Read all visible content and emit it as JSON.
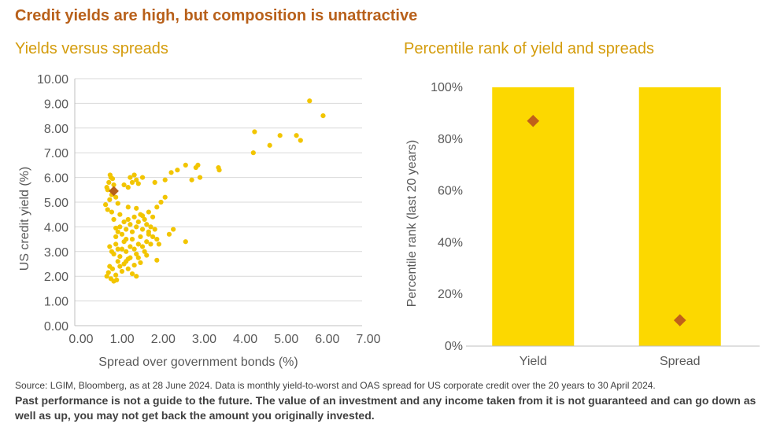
{
  "header": {
    "title": "Credit yields are high, but composition is unattractive",
    "left_subtitle": "Yields versus spreads",
    "right_subtitle": "Percentile rank of yield and spreads"
  },
  "footer": {
    "source": "Source: LGIM, Bloomberg, as at 28 June 2024. Data is monthly yield-to-worst and OAS spread for US corporate credit over the 20 years to 30 April 2024.",
    "disclaimer": "Past performance is not a guide to the future. The value of an investment and any income taken from it is not guaranteed and can go down as well as up, you may not get back the amount you originally invested."
  },
  "colors": {
    "point": "#f2c500",
    "current_point": "#b8601a",
    "bar": "#fcd800",
    "marker": "#c0601a",
    "title": "#b8601a",
    "subtitle": "#d49c0c"
  },
  "chart_data": [
    {
      "type": "scatter",
      "xlabel": "Spread over government bonds (%)",
      "ylabel": "US credit yield (%)",
      "xlim": [
        0,
        7
      ],
      "ylim": [
        0,
        10
      ],
      "x_ticks": [
        "0.00",
        "1.00",
        "2.00",
        "3.00",
        "4.00",
        "5.00",
        "6.00",
        "7.00"
      ],
      "y_ticks": [
        "0.00",
        "1.00",
        "2.00",
        "3.00",
        "4.00",
        "5.00",
        "6.00",
        "7.00",
        "8.00",
        "9.00",
        "10.00"
      ],
      "grid": "horizontal",
      "series": [
        {
          "points": [
            [
              0.78,
              2.0
            ],
            [
              0.82,
              2.15
            ],
            [
              0.88,
              1.9
            ],
            [
              0.92,
              2.3
            ],
            [
              0.95,
              1.8
            ],
            [
              1.02,
              1.85
            ],
            [
              0.85,
              2.4
            ],
            [
              1.0,
              2.05
            ],
            [
              0.75,
              4.9
            ],
            [
              0.8,
              4.7
            ],
            [
              0.85,
              5.1
            ],
            [
              0.9,
              5.3
            ],
            [
              0.78,
              5.6
            ],
            [
              0.83,
              5.8
            ],
            [
              0.88,
              6.0
            ],
            [
              0.92,
              5.95
            ],
            [
              0.86,
              6.1
            ],
            [
              0.95,
              5.7
            ],
            [
              0.8,
              5.5
            ],
            [
              1.0,
              5.2
            ],
            [
              1.05,
              4.95
            ],
            [
              0.9,
              4.6
            ],
            [
              0.85,
              3.2
            ],
            [
              0.9,
              3.0
            ],
            [
              0.95,
              2.9
            ],
            [
              1.0,
              3.3
            ],
            [
              1.1,
              2.8
            ],
            [
              1.15,
              3.1
            ],
            [
              1.2,
              3.4
            ],
            [
              1.25,
              3.0
            ],
            [
              1.3,
              2.7
            ],
            [
              1.35,
              3.2
            ],
            [
              1.4,
              3.5
            ],
            [
              1.45,
              3.1
            ],
            [
              1.5,
              2.9
            ],
            [
              1.55,
              3.3
            ],
            [
              1.6,
              3.6
            ],
            [
              1.65,
              3.2
            ],
            [
              1.7,
              3.0
            ],
            [
              1.75,
              3.4
            ],
            [
              1.8,
              3.7
            ],
            [
              1.85,
              3.3
            ],
            [
              1.0,
              3.6
            ],
            [
              1.05,
              3.8
            ],
            [
              1.1,
              4.0
            ],
            [
              1.15,
              3.7
            ],
            [
              1.2,
              4.2
            ],
            [
              1.25,
              3.9
            ],
            [
              1.3,
              4.3
            ],
            [
              1.35,
              4.1
            ],
            [
              1.4,
              3.8
            ],
            [
              1.45,
              4.4
            ],
            [
              1.5,
              4.0
            ],
            [
              1.55,
              4.2
            ],
            [
              1.6,
              4.5
            ],
            [
              1.65,
              3.9
            ],
            [
              1.7,
              4.3
            ],
            [
              1.75,
              4.1
            ],
            [
              1.8,
              3.8
            ],
            [
              1.85,
              4.0
            ],
            [
              1.9,
              3.6
            ],
            [
              1.95,
              3.9
            ],
            [
              2.0,
              3.5
            ],
            [
              2.05,
              3.3
            ],
            [
              1.05,
              2.6
            ],
            [
              1.1,
              2.4
            ],
            [
              1.2,
              2.5
            ],
            [
              1.3,
              2.3
            ],
            [
              1.4,
              2.1
            ],
            [
              1.5,
              2.0
            ],
            [
              1.25,
              2.6
            ],
            [
              1.45,
              2.45
            ],
            [
              1.6,
              2.55
            ],
            [
              1.35,
              2.75
            ],
            [
              1.3,
              5.6
            ],
            [
              1.4,
              5.8
            ],
            [
              1.5,
              5.9
            ],
            [
              1.2,
              5.7
            ],
            [
              1.45,
              6.1
            ],
            [
              1.55,
              5.75
            ],
            [
              1.35,
              6.0
            ],
            [
              1.65,
              6.0
            ],
            [
              1.95,
              5.8
            ],
            [
              2.2,
              5.9
            ],
            [
              2.35,
              6.2
            ],
            [
              2.5,
              6.3
            ],
            [
              2.7,
              6.5
            ],
            [
              2.85,
              5.9
            ],
            [
              2.95,
              6.4
            ],
            [
              3.0,
              6.5
            ],
            [
              3.05,
              6.0
            ],
            [
              3.5,
              6.4
            ],
            [
              3.52,
              6.3
            ],
            [
              2.0,
              4.8
            ],
            [
              2.1,
              5.0
            ],
            [
              2.2,
              5.2
            ],
            [
              1.8,
              4.6
            ],
            [
              1.9,
              4.4
            ],
            [
              2.3,
              3.7
            ],
            [
              2.4,
              3.9
            ],
            [
              2.7,
              3.4
            ],
            [
              1.15,
              2.2
            ],
            [
              1.05,
              3.1
            ],
            [
              1.25,
              3.5
            ],
            [
              1.55,
              2.75
            ],
            [
              1.75,
              2.85
            ],
            [
              2.0,
              2.65
            ],
            [
              1.3,
              4.8
            ],
            [
              1.5,
              4.75
            ],
            [
              1.1,
              4.5
            ],
            [
              1.65,
              4.45
            ],
            [
              0.95,
              4.3
            ],
            [
              1.0,
              3.95
            ],
            [
              4.35,
              7.0
            ],
            [
              4.38,
              7.85
            ],
            [
              4.75,
              7.3
            ],
            [
              5.0,
              7.7
            ],
            [
              5.4,
              7.7
            ],
            [
              5.5,
              7.5
            ],
            [
              5.72,
              9.1
            ],
            [
              6.05,
              8.5
            ]
          ]
        },
        {
          "name": "",
          "points": [
            [
              0.95,
              5.45
            ]
          ]
        }
      ]
    },
    {
      "type": "bar",
      "ylabel": "Percentile rank (last 20 years)",
      "categories": [
        "Yield",
        "Spread"
      ],
      "ylim": [
        0,
        100
      ],
      "y_ticks": [
        "0%",
        "20%",
        "40%",
        "60%",
        "80%",
        "100%"
      ],
      "series": [
        {
          "name": "",
          "values": [
            100,
            100
          ]
        },
        {
          "name": "",
          "values": [
            87,
            10
          ]
        }
      ]
    }
  ]
}
